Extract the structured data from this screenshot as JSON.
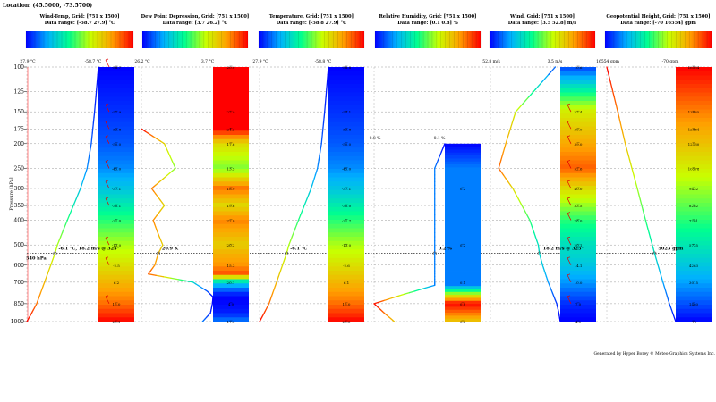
{
  "location": "Location: (45.5000, -73.5700)",
  "footer": "Generated by Hyper Borey © Meteo-Graphics Systems Inc.",
  "y_axis_label": "Pressure [hPa]",
  "pressure_line_label": "540 hPa",
  "chart_data": {
    "type": "line",
    "y_axis": {
      "label": "Pressure [hPa]",
      "scale": "log",
      "reversed": true,
      "ylim": [
        1000,
        100
      ],
      "ticks": [
        100,
        125,
        150,
        175,
        200,
        250,
        300,
        350,
        400,
        500,
        600,
        700,
        850,
        1000
      ],
      "tick_labels": [
        "100",
        "125",
        "150",
        "175",
        "200",
        "250",
        "300",
        "350",
        "400",
        "500",
        "600",
        "700",
        "850",
        "1000"
      ]
    },
    "reference_line": {
      "pressure": 540,
      "label": "540 hPa"
    },
    "grid": true,
    "panels": [
      {
        "key": "windtemp",
        "title": "Wind-Temp, Grid: [751 x 1500]",
        "range_text": "Data range: [-58.7 27.9] °C",
        "x_left_label": "27.9 °C",
        "x_right_label": "-58.7 °C",
        "xlim": [
          27.9,
          -58.7
        ],
        "cursor_value": "-6.1 °C, 18.2 m/s @ 325°",
        "profile": [
          {
            "p": 1000,
            "v": 27.9
          },
          {
            "p": 925,
            "v": 22.0
          },
          {
            "p": 850,
            "v": 16.0
          },
          {
            "p": 700,
            "v": 6.5
          },
          {
            "p": 600,
            "v": -1.0
          },
          {
            "p": 540,
            "v": -6.1
          },
          {
            "p": 500,
            "v": -9.0
          },
          {
            "p": 400,
            "v": -21.0
          },
          {
            "p": 300,
            "v": -37.0
          },
          {
            "p": 250,
            "v": -45.0
          },
          {
            "p": 200,
            "v": -50.0
          },
          {
            "p": 150,
            "v": -54.0
          },
          {
            "p": 100,
            "v": -58.7
          }
        ],
        "colorbar_labels": [
          {
            "p": 100,
            "t": "-58.7"
          },
          {
            "p": 150,
            "t": "-51.9"
          },
          {
            "p": 175,
            "t": "-53.8"
          },
          {
            "p": 200,
            "t": "-50.0"
          },
          {
            "p": 250,
            "t": "-45.0"
          },
          {
            "p": 300,
            "t": "-37.1"
          },
          {
            "p": 350,
            "t": "-30.1"
          },
          {
            "p": 400,
            "t": "-21.0"
          },
          {
            "p": 500,
            "t": "-13.0"
          },
          {
            "p": 600,
            "t": "-2.5"
          },
          {
            "p": 700,
            "t": "6.2"
          },
          {
            "p": 850,
            "t": "15.0"
          },
          {
            "p": 1000,
            "t": "20.1"
          }
        ],
        "wind_barb_levels": [
          100,
          150,
          175,
          200,
          250,
          300,
          350,
          500,
          600,
          850
        ],
        "colorbar": {
          "vmin": -58.7,
          "vmax": 27.9
        }
      },
      {
        "key": "dewpoint",
        "title": "Dew Point Depression, Grid: [751 x 1500]",
        "range_text": "Data range: [3.7 26.2] °C",
        "x_left_label": "26.2 °C",
        "x_right_label": "3.7 °C",
        "xlim": [
          26.2,
          3.7
        ],
        "cursor_value": "20.9 K",
        "profile": [
          {
            "p": 1000,
            "v": 7.0
          },
          {
            "p": 925,
            "v": 4.5
          },
          {
            "p": 850,
            "v": 3.9
          },
          {
            "p": 800,
            "v": 3.7
          },
          {
            "p": 760,
            "v": 5.5
          },
          {
            "p": 700,
            "v": 10.0
          },
          {
            "p": 650,
            "v": 24.0
          },
          {
            "p": 600,
            "v": 22.0
          },
          {
            "p": 540,
            "v": 20.9
          },
          {
            "p": 500,
            "v": 19.5
          },
          {
            "p": 450,
            "v": 21.0
          },
          {
            "p": 400,
            "v": 22.5
          },
          {
            "p": 350,
            "v": 19.0
          },
          {
            "p": 300,
            "v": 23.0
          },
          {
            "p": 250,
            "v": 15.5
          },
          {
            "p": 200,
            "v": 19.0
          },
          {
            "p": 175,
            "v": 26.2
          }
        ],
        "colorbar_labels": [
          {
            "p": 100,
            "t": "20.0"
          },
          {
            "p": 150,
            "t": "22.9"
          },
          {
            "p": 175,
            "t": "24.2"
          },
          {
            "p": 200,
            "t": "17.6"
          },
          {
            "p": 250,
            "t": "13.5"
          },
          {
            "p": 300,
            "t": "18.9"
          },
          {
            "p": 350,
            "t": "19.6"
          },
          {
            "p": 400,
            "t": "22.0"
          },
          {
            "p": 500,
            "t": "20.2"
          },
          {
            "p": 600,
            "t": "15.3"
          },
          {
            "p": 700,
            "t": "20.1"
          },
          {
            "p": 850,
            "t": "4.0"
          },
          {
            "p": 1000,
            "t": "17.0"
          }
        ],
        "colorbar": {
          "vmin": 3.7,
          "vmax": 26.2
        }
      },
      {
        "key": "temp",
        "title": "Temperature, Grid: [751 x 1500]",
        "range_text": "Data range: [-58.8 27.9] °C",
        "x_left_label": "27.9 °C",
        "x_right_label": "-58.8 °C",
        "xlim": [
          27.9,
          -58.8
        ],
        "cursor_value": "-6.1 °C",
        "profile": [
          {
            "p": 1000,
            "v": 27.9
          },
          {
            "p": 925,
            "v": 22.0
          },
          {
            "p": 850,
            "v": 16.0
          },
          {
            "p": 700,
            "v": 6.5
          },
          {
            "p": 600,
            "v": -1.0
          },
          {
            "p": 540,
            "v": -6.1
          },
          {
            "p": 500,
            "v": -9.0
          },
          {
            "p": 400,
            "v": -21.0
          },
          {
            "p": 300,
            "v": -37.0
          },
          {
            "p": 250,
            "v": -45.0
          },
          {
            "p": 200,
            "v": -50.0
          },
          {
            "p": 150,
            "v": -54.0
          },
          {
            "p": 100,
            "v": -58.8
          }
        ],
        "colorbar_labels": [
          {
            "p": 100,
            "t": "-58.8"
          },
          {
            "p": 150,
            "t": "-54.1"
          },
          {
            "p": 175,
            "t": "-53.8"
          },
          {
            "p": 200,
            "t": "-50.0"
          },
          {
            "p": 250,
            "t": "-45.0"
          },
          {
            "p": 300,
            "t": "-37.1"
          },
          {
            "p": 350,
            "t": "-30.0"
          },
          {
            "p": 400,
            "t": "-21.7"
          },
          {
            "p": 500,
            "t": "-13.0"
          },
          {
            "p": 600,
            "t": "-2.6"
          },
          {
            "p": 700,
            "t": "6.1"
          },
          {
            "p": 850,
            "t": "15.0"
          },
          {
            "p": 1000,
            "t": "20.3"
          }
        ],
        "colorbar": {
          "vmin": -58.8,
          "vmax": 27.9
        }
      },
      {
        "key": "rh",
        "title": "Relative Humidity, Grid: [751 x 1500]",
        "range_text": "Data range: [0.1 0.8] %",
        "x_left_label": "0.8 %",
        "x_right_label": "0.1 %",
        "xlim": [
          0.8,
          0.1
        ],
        "cursor_value": "0.2 %",
        "profile": [
          {
            "p": 1000,
            "v": 0.6
          },
          {
            "p": 925,
            "v": 0.7
          },
          {
            "p": 850,
            "v": 0.8
          },
          {
            "p": 780,
            "v": 0.5
          },
          {
            "p": 720,
            "v": 0.2
          },
          {
            "p": 700,
            "v": 0.2
          },
          {
            "p": 600,
            "v": 0.2
          },
          {
            "p": 540,
            "v": 0.2
          },
          {
            "p": 500,
            "v": 0.2
          },
          {
            "p": 400,
            "v": 0.2
          },
          {
            "p": 300,
            "v": 0.2
          },
          {
            "p": 250,
            "v": 0.2
          },
          {
            "p": 200,
            "v": 0.1
          }
        ],
        "colorbar_labels": [
          {
            "p": 300,
            "t": "0.2"
          },
          {
            "p": 500,
            "t": "0.2"
          },
          {
            "p": 700,
            "t": "0.1"
          },
          {
            "p": 850,
            "t": "0.8"
          },
          {
            "p": 1000,
            "t": "0.6"
          }
        ],
        "colorbar_top_p": 200,
        "colorbar": {
          "vmin": 0.1,
          "vmax": 0.8
        }
      },
      {
        "key": "wind",
        "title": "Wind, Grid: [751 x 1500]",
        "range_text": "Data range: [3.5 52.8] m/s",
        "x_left_label": "52.8 m/s",
        "x_right_label": "3.5 m/s",
        "xlim": [
          52.8,
          3.5
        ],
        "cursor_value": "18.2 m/s @ 325°",
        "profile": [
          {
            "p": 1000,
            "v": 3.5
          },
          {
            "p": 925,
            "v": 4.5
          },
          {
            "p": 850,
            "v": 6.0
          },
          {
            "p": 700,
            "v": 12.0
          },
          {
            "p": 600,
            "v": 16.0
          },
          {
            "p": 540,
            "v": 18.2
          },
          {
            "p": 500,
            "v": 19.0
          },
          {
            "p": 400,
            "v": 25.0
          },
          {
            "p": 300,
            "v": 37.0
          },
          {
            "p": 250,
            "v": 47.0
          },
          {
            "p": 200,
            "v": 42.0
          },
          {
            "p": 150,
            "v": 35.0
          },
          {
            "p": 100,
            "v": 7.0
          }
        ],
        "colorbar_labels": [
          {
            "p": 100,
            "t": "10.6"
          },
          {
            "p": 150,
            "t": "22.4"
          },
          {
            "p": 175,
            "t": "30.0"
          },
          {
            "p": 200,
            "t": "39.0"
          },
          {
            "p": 250,
            "t": "52.6"
          },
          {
            "p": 300,
            "t": "40.0"
          },
          {
            "p": 350,
            "t": "33.5"
          },
          {
            "p": 400,
            "t": "28.0"
          },
          {
            "p": 500,
            "t": "20.1"
          },
          {
            "p": 600,
            "t": "14.1"
          },
          {
            "p": 700,
            "t": "10.0"
          },
          {
            "p": 850,
            "t": "7.0"
          },
          {
            "p": 1000,
            "t": "4.0"
          }
        ],
        "wind_barb_levels": [
          150,
          175,
          200,
          250,
          300,
          350,
          400,
          500,
          600,
          700,
          850
        ],
        "colorbar": {
          "vmin": 3.5,
          "vmax": 52.8
        }
      },
      {
        "key": "geopot",
        "title": "Geopotential Height, Grid: [751 x 1500]",
        "range_text": "Data range: [-70 16554] gpm",
        "x_left_label": "16554 gpm",
        "x_right_label": "-70 gpm",
        "xlim": [
          16554,
          -70
        ],
        "cursor_value": "5023 gpm",
        "profile": [
          {
            "p": 1000,
            "v": -70
          },
          {
            "p": 850,
            "v": 1455
          },
          {
            "p": 700,
            "v": 3015
          },
          {
            "p": 540,
            "v": 5023
          },
          {
            "p": 500,
            "v": 5575
          },
          {
            "p": 400,
            "v": 7200
          },
          {
            "p": 300,
            "v": 9200
          },
          {
            "p": 250,
            "v": 10500
          },
          {
            "p": 200,
            "v": 12100
          },
          {
            "p": 150,
            "v": 13900
          },
          {
            "p": 100,
            "v": 16554
          }
        ],
        "colorbar_labels": [
          {
            "p": 100,
            "t": "16554"
          },
          {
            "p": 150,
            "t": "13885"
          },
          {
            "p": 175,
            "t": "12884"
          },
          {
            "p": 200,
            "t": "12130"
          },
          {
            "p": 250,
            "t": "10578"
          },
          {
            "p": 300,
            "t": "9432"
          },
          {
            "p": 350,
            "t": "8262"
          },
          {
            "p": 400,
            "t": "7201"
          },
          {
            "p": 500,
            "t": "5735"
          },
          {
            "p": 600,
            "t": "4263"
          },
          {
            "p": 700,
            "t": "3015"
          },
          {
            "p": 850,
            "t": "1460"
          },
          {
            "p": 1000,
            "t": "-70"
          }
        ],
        "colorbar": {
          "vmin": -70,
          "vmax": 16554
        }
      }
    ]
  }
}
